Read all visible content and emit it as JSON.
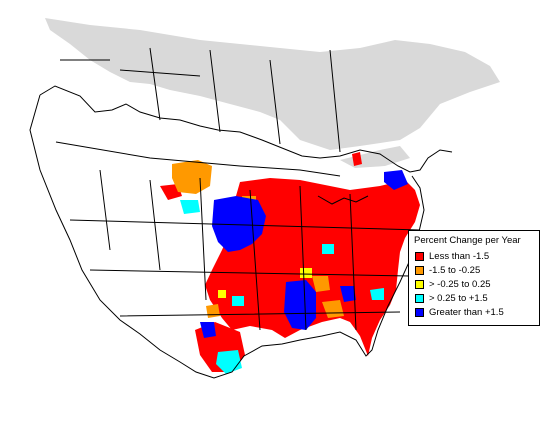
{
  "legend": {
    "title": "Percent Change per Year",
    "items": [
      {
        "label": "Less than -1.5",
        "color": "#ff0000"
      },
      {
        "label": "-1.5 to -0.25",
        "color": "#ff9900"
      },
      {
        "label": "> -0.25 to 0.25",
        "color": "#ffff00"
      },
      {
        "label": "> 0.25 to +1.5",
        "color": "#00ffff"
      },
      {
        "label": "Greater than +1.5",
        "color": "#0000ff"
      }
    ]
  },
  "colors": {
    "outside_range": "#d9d9d9",
    "background": "#ffffff",
    "boundary": "#000000"
  }
}
